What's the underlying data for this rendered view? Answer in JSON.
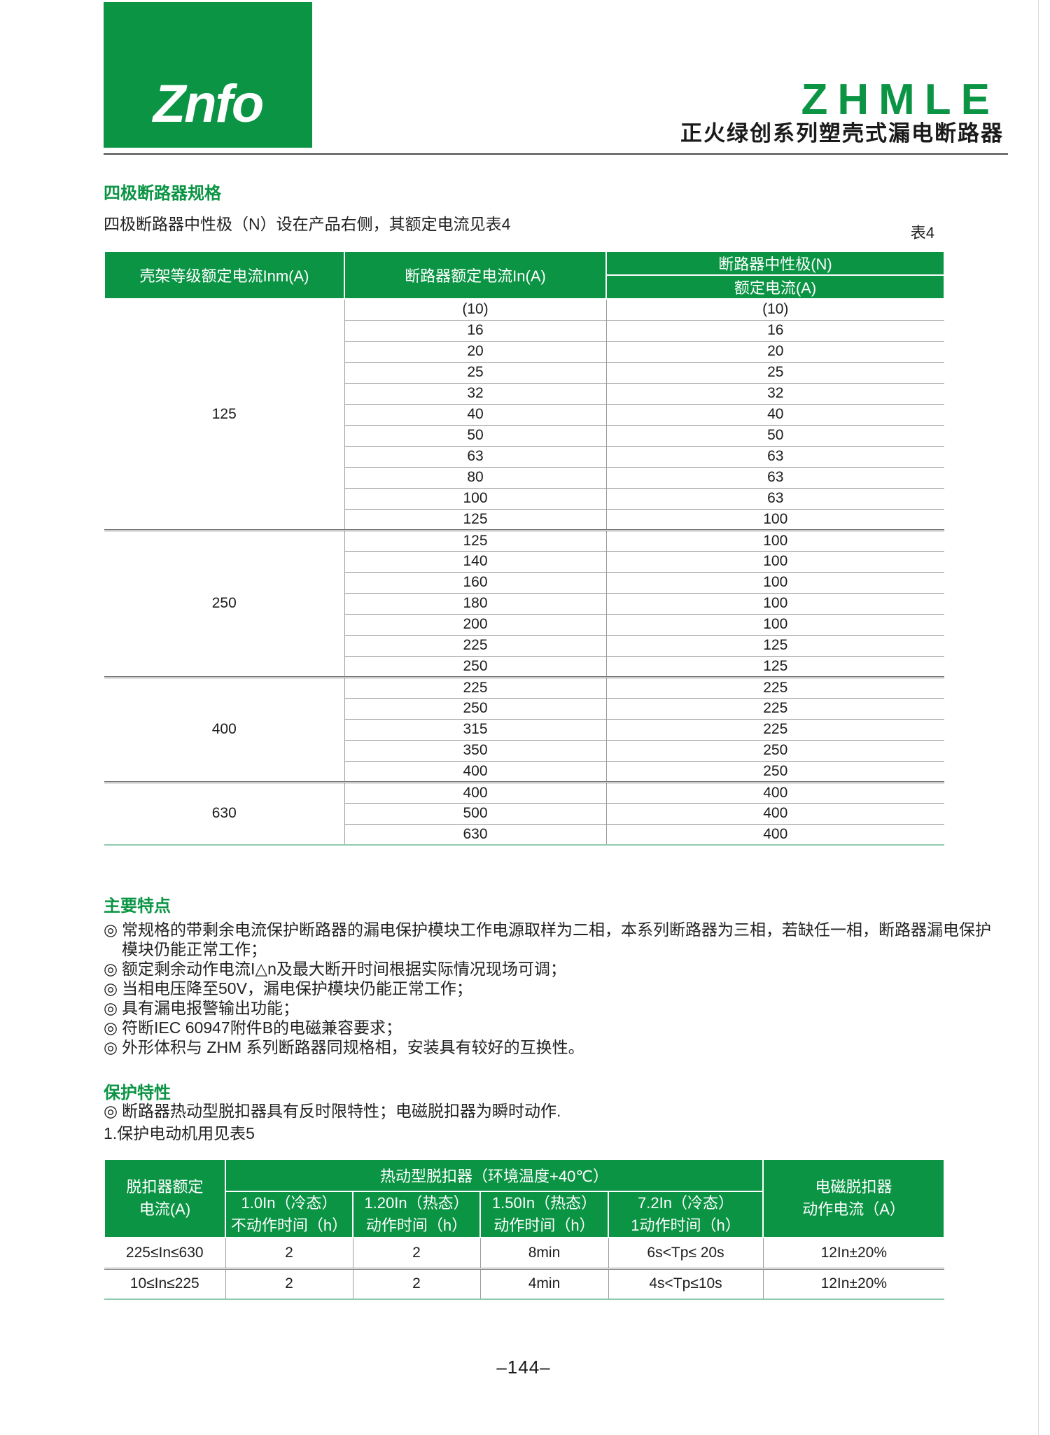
{
  "page": {
    "brand_logo": "Znfo",
    "product_code": "ZHMLE",
    "product_subtitle": "正火绿创系列塑壳式漏电断路器",
    "page_number": "–144–"
  },
  "colors": {
    "brand_green": "#0A9444"
  },
  "section_specs": {
    "title": "四极断路器规格",
    "intro": "四极断路器中性极（N）设在产品右侧，其额定电流见表4",
    "table_label": "表4"
  },
  "table4": {
    "col1_header": "壳架等级额定电流Inm(A)",
    "col2_header": "断路器额定电流In(A)",
    "col3_header_top": "断路器中性极(N)",
    "col3_header_bottom": "额定电流(A)",
    "blocks": [
      {
        "frame": "125",
        "rows": [
          [
            "(10)",
            "(10)"
          ],
          [
            "16",
            "16"
          ],
          [
            "20",
            "20"
          ],
          [
            "25",
            "25"
          ],
          [
            "32",
            "32"
          ],
          [
            "40",
            "40"
          ],
          [
            "50",
            "50"
          ],
          [
            "63",
            "63"
          ],
          [
            "80",
            "63"
          ],
          [
            "100",
            "63"
          ],
          [
            "125",
            "100"
          ]
        ]
      },
      {
        "frame": "250",
        "rows": [
          [
            "125",
            "100"
          ],
          [
            "140",
            "100"
          ],
          [
            "160",
            "100"
          ],
          [
            "180",
            "100"
          ],
          [
            "200",
            "100"
          ],
          [
            "225",
            "125"
          ],
          [
            "250",
            "125"
          ]
        ]
      },
      {
        "frame": "400",
        "rows": [
          [
            "225",
            "225"
          ],
          [
            "250",
            "225"
          ],
          [
            "315",
            "225"
          ],
          [
            "350",
            "250"
          ],
          [
            "400",
            "250"
          ]
        ]
      },
      {
        "frame": "630",
        "rows": [
          [
            "400",
            "400"
          ],
          [
            "500",
            "400"
          ],
          [
            "630",
            "400"
          ]
        ]
      }
    ]
  },
  "section_features": {
    "title": "主要特点",
    "bullet": "◎",
    "items": [
      "常规格的带剩余电流保护断路器的漏电保护模块工作电源取样为二相，本系列断路器为三相，若缺任一相，断路器漏电保护模块仍能正常工作；",
      "额定剩余动作电流I△n及最大断开时间根据实际情况现场可调；",
      "当相电压降至50V，漏电保护模块仍能正常工作；",
      "具有漏电报警输出功能；",
      "符断IEC 60947附件B的电磁兼容要求；",
      "外形体积与 ZHM 系列断路器同规格相，安装具有较好的互换性。"
    ]
  },
  "section_protection": {
    "title": "保护特性",
    "bullet": "◎",
    "items": [
      "断路器热动型脱扣器具有反时限特性；电磁脱扣器为瞬时动作."
    ],
    "note": "1.保护电动机用见表5"
  },
  "table5": {
    "header_current": {
      "line1": "脱扣器额定",
      "line2": "电流(A)"
    },
    "header_thermal": "热动型脱扣器（环境温度+40℃）",
    "sub_headers": [
      {
        "line1": "1.0In（冷态）",
        "line2": "不动作时间（h）"
      },
      {
        "line1": "1.20In（热态）",
        "line2": "动作时间（h）"
      },
      {
        "line1": "1.50In（热态）",
        "line2": "动作时间（h）"
      },
      {
        "line1": "7.2In（冷态）",
        "line2": "1动作时间（h）"
      }
    ],
    "header_magnetic": {
      "line1": "电磁脱扣器",
      "line2": "动作电流（A）"
    },
    "rows": [
      [
        "225≤In≤630",
        "2",
        "2",
        "8min",
        "6s<Tp≤ 20s",
        "12In±20%"
      ],
      [
        "10≤In≤225",
        "2",
        "2",
        "4min",
        "4s<Tp≤10s",
        "12In±20%"
      ]
    ]
  }
}
